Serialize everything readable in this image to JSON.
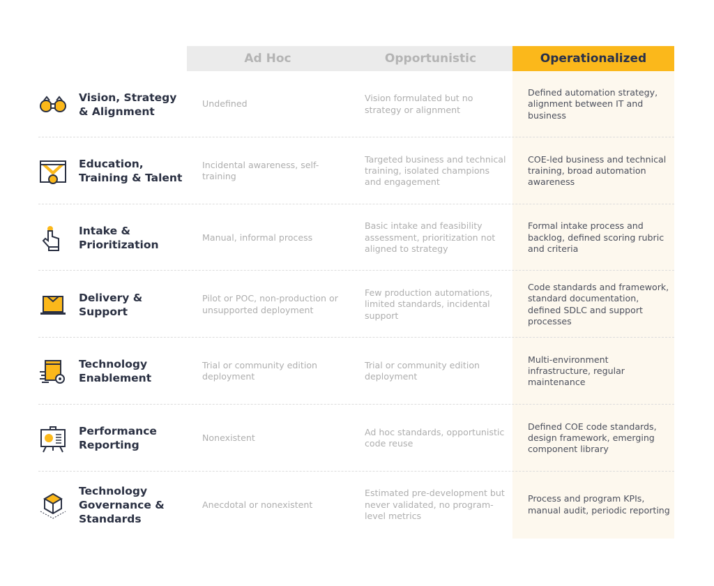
{
  "header": {
    "columns": [
      "Ad Hoc",
      "Opportunistic",
      "Operationalized"
    ]
  },
  "colors": {
    "accent": "#fbb81b",
    "navy": "#2a3042",
    "muted": "#aeaeae",
    "header_bg": "#ebebeb",
    "highlight_bg": "#fdf8ee"
  },
  "rows": [
    {
      "label": "Vision, Strategy & Alignment",
      "icon": "binoculars-icon",
      "ad_hoc": "Undefined",
      "opportunistic": "Vision formulated but no strategy or alignment",
      "operationalized": "Defined automation strategy, alignment between IT and business"
    },
    {
      "label": "Education, Training & Talent",
      "icon": "medal-icon",
      "ad_hoc": "Incidental awareness, self-training",
      "opportunistic": "Targeted business and technical training, isolated champions and engagement",
      "operationalized": "COE-led business and technical training, broad automation awareness"
    },
    {
      "label": "Intake & Prioritization",
      "icon": "hand-pointer-icon",
      "ad_hoc": "Manual, informal process",
      "opportunistic": "Basic intake and feasibility assessment, prioritization not aligned to strategy",
      "operationalized": "Formal intake process and backlog, defined scoring rubric and criteria"
    },
    {
      "label": "Delivery & Support",
      "icon": "laptop-mail-icon",
      "ad_hoc": "Pilot or POC, non-production or unsupported deployment",
      "opportunistic": "Few production automations, limited standards, incidental support",
      "operationalized": "Code standards and framework, standard documentation, defined SDLC and support processes"
    },
    {
      "label": "Technology Enablement",
      "icon": "window-gear-icon",
      "ad_hoc": "Trial or community edition deployment",
      "opportunistic": "Trial or community edition deployment",
      "operationalized": "Multi-environment infrastructure, regular maintenance"
    },
    {
      "label": "Performance Reporting",
      "icon": "presentation-board-icon",
      "ad_hoc": "Nonexistent",
      "opportunistic": "Ad hoc standards, opportunistic code reuse",
      "operationalized": "Defined COE code standards, design framework, emerging component library"
    },
    {
      "label": "Technology Governance & Standards",
      "icon": "cube-icon",
      "ad_hoc": "Anecdotal or nonexistent",
      "opportunistic": "Estimated pre-development but never validated, no program-level metrics",
      "operationalized": "Process and program KPIs, manual audit, periodic reporting"
    }
  ]
}
